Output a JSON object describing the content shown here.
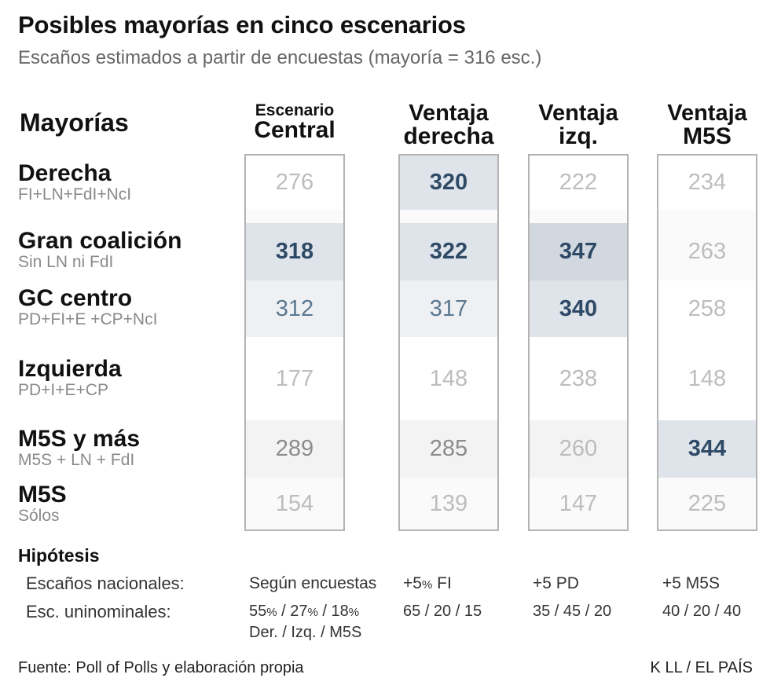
{
  "title": "Posibles mayorías en cinco escenarios",
  "subtitle": "Escaños estimados a partir de encuestas (mayoría = 316 esc.)",
  "majorities_header": "Mayorías",
  "scenarios": [
    {
      "line1": "Escenario",
      "line2": "Central"
    },
    {
      "line1": "Ventaja",
      "line2": "derecha"
    },
    {
      "line1": "Ventaja",
      "line2": "izq."
    },
    {
      "line1": "Ventaja",
      "line2": "M5S"
    }
  ],
  "rows": [
    {
      "name": "Derecha",
      "sub": "FI+LN+FdI+NcI"
    },
    {
      "name": "Gran coalición",
      "sub": "Sin LN ni FdI"
    },
    {
      "name": "GC centro",
      "sub": "PD+FI+E +CP+NcI"
    },
    {
      "name": "Izquierda",
      "sub": "PD+I+E+CP"
    },
    {
      "name": "M5S y más",
      "sub": "M5S + LN + FdI"
    },
    {
      "name": "M5S",
      "sub": "Sólos"
    }
  ],
  "chart_data": {
    "type": "table",
    "title": "Posibles mayorías en cinco escenarios",
    "subtitle": "Escaños estimados a partir de encuestas (mayoría = 316 esc.)",
    "majority_threshold": 316,
    "columns": [
      "Escenario Central",
      "Ventaja derecha",
      "Ventaja izq.",
      "Ventaja M5S"
    ],
    "rows": [
      "Derecha",
      "Gran coalición",
      "GC centro",
      "Izquierda",
      "M5S y más",
      "M5S"
    ],
    "values": [
      [
        "276",
        "320",
        "222",
        "234"
      ],
      [
        "318",
        "322",
        "347",
        "263"
      ],
      [
        "312",
        "317",
        "340",
        "258"
      ],
      [
        "177",
        "148",
        "238",
        "148"
      ],
      [
        "289",
        "285",
        "260",
        "344"
      ],
      [
        "154",
        "139",
        "147",
        "225"
      ]
    ],
    "styles": [
      [
        "light",
        "strong",
        "light",
        "light"
      ],
      [
        "strong",
        "strong",
        "strong",
        "light"
      ],
      [
        "mid",
        "mid",
        "strong",
        "light"
      ],
      [
        "light",
        "light",
        "light",
        "light"
      ],
      [
        "grey",
        "grey",
        "light",
        "strong"
      ],
      [
        "light",
        "light",
        "light",
        "light"
      ]
    ],
    "highlight_levels": [
      [
        0,
        1,
        0,
        0
      ],
      [
        1,
        1,
        2,
        0
      ],
      [
        0.5,
        0.5,
        1,
        0
      ],
      [
        0,
        0,
        0,
        0
      ],
      [
        0.3,
        0.3,
        0.3,
        1
      ],
      [
        0,
        0,
        0,
        0
      ]
    ]
  },
  "hypotheses": {
    "title": "Hipótesis",
    "national_label": "Escaños nacionales:",
    "uninominal_label": "Esc. uninominales:",
    "national": [
      "Según encuestas",
      "+5% FI",
      "+5 PD",
      "+5 M5S"
    ],
    "uninominal": [
      "55% / 27% / 18%",
      "65 / 20 / 15",
      "35 / 45 / 20",
      "40 / 20 / 40"
    ],
    "uninominal_note": "Der. / Izq. / M5S"
  },
  "footer": {
    "source": "Fuente: Poll of Polls y elaboración propia",
    "credit": "K LL / EL PAÍS"
  },
  "colors": {
    "strong_text": "#2e4a66",
    "mid_text": "#5c7891",
    "light_text": "#bdbdbd",
    "grey_text": "#8c8c8c",
    "highlight_base": "#dfe4ea",
    "highlight_dark": "#d2d8df",
    "column_border": "#b3b3b3"
  }
}
